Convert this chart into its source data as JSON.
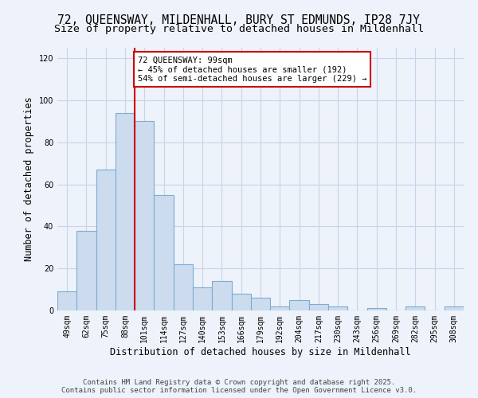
{
  "title_line1": "72, QUEENSWAY, MILDENHALL, BURY ST EDMUNDS, IP28 7JY",
  "title_line2": "Size of property relative to detached houses in Mildenhall",
  "xlabel": "Distribution of detached houses by size in Mildenhall",
  "ylabel": "Number of detached properties",
  "categories": [
    "49sqm",
    "62sqm",
    "75sqm",
    "88sqm",
    "101sqm",
    "114sqm",
    "127sqm",
    "140sqm",
    "153sqm",
    "166sqm",
    "179sqm",
    "192sqm",
    "204sqm",
    "217sqm",
    "230sqm",
    "243sqm",
    "256sqm",
    "269sqm",
    "282sqm",
    "295sqm",
    "308sqm"
  ],
  "values": [
    9,
    38,
    67,
    94,
    90,
    55,
    22,
    11,
    14,
    8,
    6,
    2,
    5,
    3,
    2,
    0,
    1,
    0,
    2,
    0,
    2
  ],
  "bar_color": "#ccdcee",
  "bar_edge_color": "#7aadd0",
  "red_line_x": 4,
  "annotation_text": "72 QUEENSWAY: 99sqm\n← 45% of detached houses are smaller (192)\n54% of semi-detached houses are larger (229) →",
  "annotation_box_facecolor": "#ffffff",
  "annotation_box_edgecolor": "#cc0000",
  "ylim": [
    0,
    125
  ],
  "yticks": [
    0,
    20,
    40,
    60,
    80,
    100,
    120
  ],
  "grid_color": "#c8d4e8",
  "background_color": "#eef2fa",
  "footer_line1": "Contains HM Land Registry data © Crown copyright and database right 2025.",
  "footer_line2": "Contains public sector information licensed under the Open Government Licence v3.0.",
  "title_fontsize": 10.5,
  "subtitle_fontsize": 9.5,
  "xlabel_fontsize": 8.5,
  "ylabel_fontsize": 8.5,
  "tick_fontsize": 7,
  "annot_fontsize": 7.5,
  "footer_fontsize": 6.5
}
